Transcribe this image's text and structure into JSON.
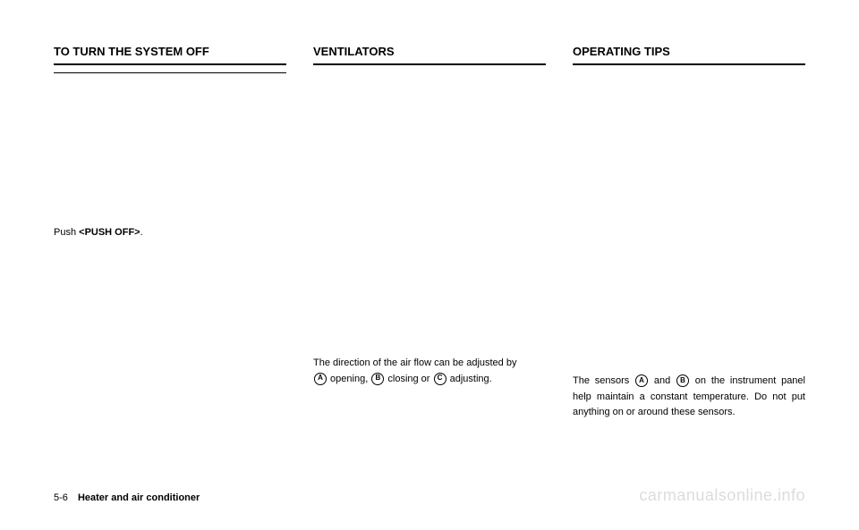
{
  "col1": {
    "heading": "TO TURN THE SYSTEM OFF",
    "text_prefix": "Push ",
    "text_bold": "<PUSH OFF>",
    "text_suffix": "."
  },
  "col2": {
    "heading": "VENTILATORS",
    "line1": "The direction of the air flow can be adjusted by",
    "markA": "A",
    "wordA_after": " opening, ",
    "markB": "B",
    "wordB_after": " closing or ",
    "markC": "C",
    "wordC_after": " adjusting."
  },
  "col3": {
    "heading": "OPERATING TIPS",
    "line1_pre": "The sensors ",
    "markA": "A",
    "line1_mid": " and ",
    "markB": "B",
    "line1_post": " on the instrument panel help maintain a constant temperature. Do not put anything on or around these sensors."
  },
  "footer": {
    "page": "5-6",
    "chapter": "Heater and air conditioner"
  },
  "watermark": "carmanualsonline.info"
}
